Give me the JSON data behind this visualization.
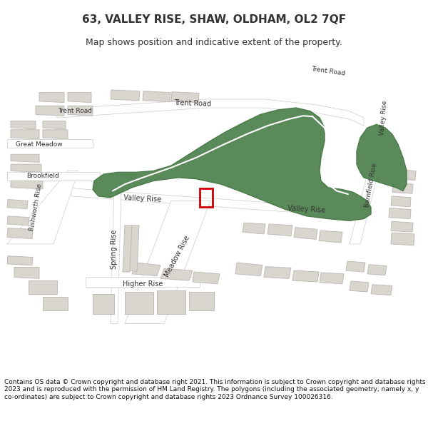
{
  "title": "63, VALLEY RISE, SHAW, OLDHAM, OL2 7QF",
  "subtitle": "Map shows position and indicative extent of the property.",
  "footer": "Contains OS data © Crown copyright and database right 2021. This information is subject to Crown copyright and database rights 2023 and is reproduced with the permission of HM Land Registry. The polygons (including the associated geometry, namely x, y co-ordinates) are subject to Crown copyright and database rights 2023 Ordnance Survey 100026316.",
  "map_bg": "#f5f4f1",
  "building_color": "#d9d6d0",
  "building_edge": "#c0bcb6",
  "green_color": "#5a8a5a",
  "green_edge": "#4a7a4a",
  "red_rect_color": "#cc0000",
  "text_color": "#333333"
}
